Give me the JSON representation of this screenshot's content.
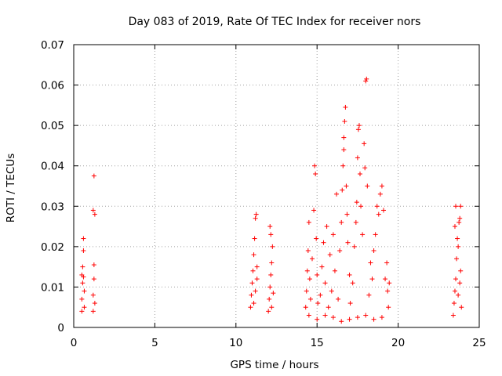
{
  "chart_data": {
    "type": "scatter",
    "title": "Day 083 of 2019, Rate Of TEC Index for receiver nors",
    "xlabel": "GPS time / hours",
    "ylabel": "ROTI / TECUs",
    "xlim": [
      0,
      25
    ],
    "ylim": [
      0,
      0.07
    ],
    "x_ticks": [
      0,
      5,
      10,
      15,
      20,
      25
    ],
    "x_tick_labels": [
      "0",
      "5",
      "10",
      "15",
      "20",
      "25"
    ],
    "y_ticks": [
      0,
      0.01,
      0.02,
      0.03,
      0.04,
      0.05,
      0.06,
      0.07
    ],
    "y_tick_labels": [
      "0",
      "0.01",
      "0.02",
      "0.03",
      "0.04",
      "0.05",
      "0.06",
      "0.07"
    ],
    "grid": true,
    "marker": "plus",
    "color": "#ff0000",
    "points": [
      [
        0.5,
        0.004
      ],
      [
        0.5,
        0.007
      ],
      [
        0.55,
        0.011
      ],
      [
        0.55,
        0.015
      ],
      [
        0.6,
        0.019
      ],
      [
        0.6,
        0.022
      ],
      [
        0.65,
        0.009
      ],
      [
        0.65,
        0.005
      ],
      [
        0.5,
        0.013
      ],
      [
        0.6,
        0.0125
      ],
      [
        1.2,
        0.004
      ],
      [
        1.2,
        0.008
      ],
      [
        1.25,
        0.012
      ],
      [
        1.25,
        0.0155
      ],
      [
        1.2,
        0.029
      ],
      [
        1.3,
        0.028
      ],
      [
        1.25,
        0.0375
      ],
      [
        1.3,
        0.006
      ],
      [
        10.9,
        0.005
      ],
      [
        10.95,
        0.008
      ],
      [
        11.0,
        0.011
      ],
      [
        11.05,
        0.014
      ],
      [
        11.1,
        0.018
      ],
      [
        11.15,
        0.022
      ],
      [
        11.2,
        0.027
      ],
      [
        11.25,
        0.028
      ],
      [
        11.1,
        0.006
      ],
      [
        11.2,
        0.009
      ],
      [
        11.3,
        0.012
      ],
      [
        11.3,
        0.015
      ],
      [
        12.0,
        0.004
      ],
      [
        12.05,
        0.007
      ],
      [
        12.1,
        0.01
      ],
      [
        12.15,
        0.013
      ],
      [
        12.2,
        0.016
      ],
      [
        12.25,
        0.02
      ],
      [
        12.15,
        0.023
      ],
      [
        12.1,
        0.025
      ],
      [
        12.2,
        0.005
      ],
      [
        12.3,
        0.0085
      ],
      [
        14.3,
        0.005
      ],
      [
        14.35,
        0.009
      ],
      [
        14.4,
        0.014
      ],
      [
        14.45,
        0.019
      ],
      [
        14.5,
        0.026
      ],
      [
        14.55,
        0.012
      ],
      [
        14.6,
        0.007
      ],
      [
        14.7,
        0.017
      ],
      [
        14.8,
        0.029
      ],
      [
        14.85,
        0.04
      ],
      [
        14.9,
        0.038
      ],
      [
        14.95,
        0.022
      ],
      [
        15.0,
        0.013
      ],
      [
        15.05,
        0.006
      ],
      [
        15.2,
        0.008
      ],
      [
        15.3,
        0.015
      ],
      [
        15.4,
        0.021
      ],
      [
        15.5,
        0.011
      ],
      [
        15.6,
        0.025
      ],
      [
        15.7,
        0.005
      ],
      [
        15.8,
        0.018
      ],
      [
        15.9,
        0.009
      ],
      [
        16.0,
        0.023
      ],
      [
        16.1,
        0.014
      ],
      [
        16.2,
        0.033
      ],
      [
        16.3,
        0.007
      ],
      [
        16.4,
        0.019
      ],
      [
        16.5,
        0.026
      ],
      [
        16.55,
        0.034
      ],
      [
        16.6,
        0.04
      ],
      [
        16.65,
        0.047
      ],
      [
        16.7,
        0.051
      ],
      [
        16.75,
        0.0545
      ],
      [
        16.65,
        0.044
      ],
      [
        16.8,
        0.035
      ],
      [
        16.85,
        0.028
      ],
      [
        16.9,
        0.021
      ],
      [
        17.0,
        0.013
      ],
      [
        17.05,
        0.006
      ],
      [
        17.2,
        0.011
      ],
      [
        17.3,
        0.02
      ],
      [
        17.4,
        0.026
      ],
      [
        17.45,
        0.031
      ],
      [
        17.5,
        0.042
      ],
      [
        17.55,
        0.049
      ],
      [
        17.6,
        0.05
      ],
      [
        17.65,
        0.038
      ],
      [
        17.7,
        0.03
      ],
      [
        17.8,
        0.023
      ],
      [
        17.9,
        0.0455
      ],
      [
        17.95,
        0.0395
      ],
      [
        18.0,
        0.061
      ],
      [
        18.05,
        0.0615
      ],
      [
        18.1,
        0.035
      ],
      [
        18.2,
        0.008
      ],
      [
        18.3,
        0.016
      ],
      [
        18.4,
        0.012
      ],
      [
        18.5,
        0.019
      ],
      [
        18.6,
        0.023
      ],
      [
        18.7,
        0.03
      ],
      [
        18.8,
        0.028
      ],
      [
        18.9,
        0.033
      ],
      [
        19.0,
        0.035
      ],
      [
        19.1,
        0.029
      ],
      [
        19.2,
        0.012
      ],
      [
        19.3,
        0.016
      ],
      [
        19.35,
        0.009
      ],
      [
        19.4,
        0.005
      ],
      [
        19.45,
        0.011
      ],
      [
        14.5,
        0.003
      ],
      [
        15.0,
        0.002
      ],
      [
        15.5,
        0.003
      ],
      [
        16.0,
        0.0025
      ],
      [
        16.5,
        0.0015
      ],
      [
        17.0,
        0.002
      ],
      [
        17.5,
        0.0025
      ],
      [
        18.0,
        0.003
      ],
      [
        18.5,
        0.002
      ],
      [
        19.0,
        0.0025
      ],
      [
        23.4,
        0.003
      ],
      [
        23.45,
        0.006
      ],
      [
        23.5,
        0.009
      ],
      [
        23.55,
        0.012
      ],
      [
        23.6,
        0.017
      ],
      [
        23.65,
        0.022
      ],
      [
        23.5,
        0.025
      ],
      [
        23.55,
        0.03
      ],
      [
        23.7,
        0.02
      ],
      [
        23.75,
        0.026
      ],
      [
        23.8,
        0.027
      ],
      [
        23.85,
        0.03
      ],
      [
        23.7,
        0.008
      ],
      [
        23.8,
        0.011
      ],
      [
        23.9,
        0.005
      ],
      [
        23.85,
        0.014
      ]
    ]
  }
}
